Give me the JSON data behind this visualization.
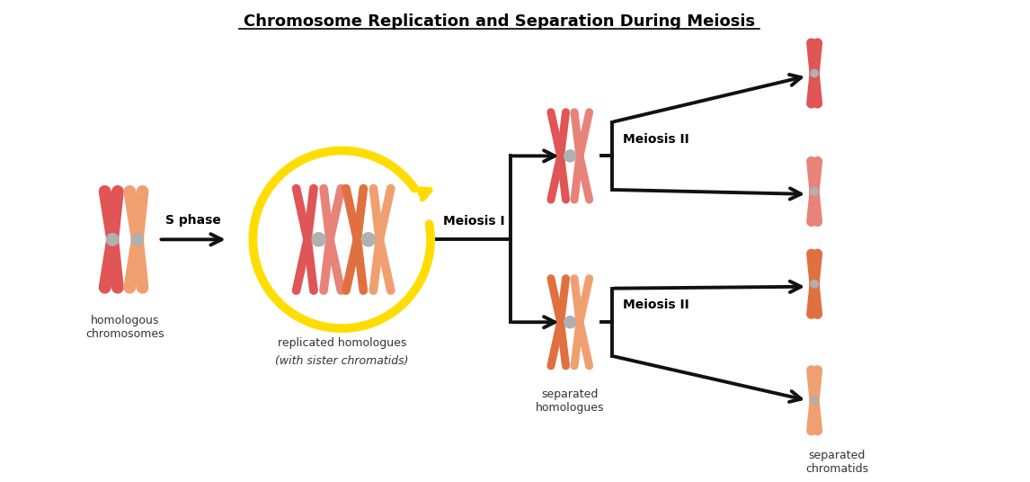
{
  "title": "Chromosome Replication and Separation During Meiosis",
  "title_fontsize": 13,
  "bg_color": "#ffffff",
  "labels": {
    "homologous": "homologous\nchromosomes",
    "replicated_line1": "replicated homologues",
    "replicated_line2": "(with sister chromatids)",
    "separated_hom": "separated\nhomologues",
    "separated_chrom": "separated\nchromatids",
    "s_phase": "S phase",
    "meiosis_i": "Meiosis I",
    "meiosis_ii_top": "Meiosis II",
    "meiosis_ii_bot": "Meiosis II"
  },
  "colors": {
    "pink_dark": "#e05555",
    "pink_light": "#e8837a",
    "orange_dark": "#e07040",
    "orange_light": "#f0a070",
    "centromere": "#b0b0b0",
    "arrow": "#111111",
    "circle_yellow": "#ffdd00",
    "text": "#333333"
  }
}
